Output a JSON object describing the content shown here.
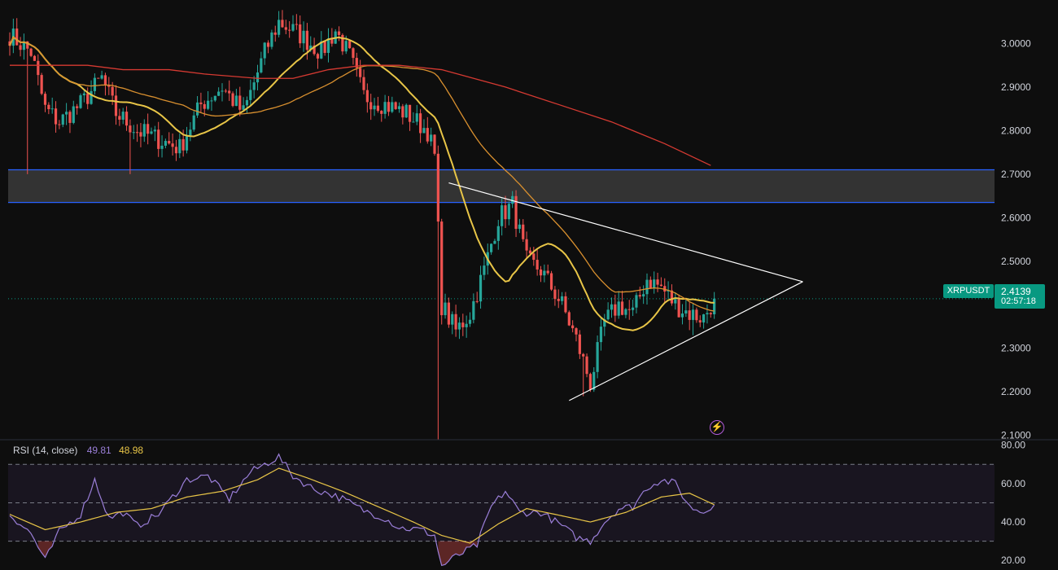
{
  "chart_data": [
    {
      "type": "candlestick",
      "symbol": "XRPUSDT",
      "last_price": "2.4139",
      "countdown": "02:57:18",
      "ylim": [
        2.09,
        3.1
      ],
      "y_ticks": [
        "3.0000",
        "2.9000",
        "2.8000",
        "2.7000",
        "2.6000",
        "2.5000",
        "2.4000",
        "2.3000",
        "2.2000",
        "2.1000"
      ],
      "y_tick_values": [
        3.0,
        2.9,
        2.8,
        2.7,
        2.6,
        2.5,
        2.4,
        2.3,
        2.2,
        2.1
      ],
      "candle_count": 200,
      "close_anchors": [
        [
          0,
          3.02
        ],
        [
          6,
          2.98
        ],
        [
          10,
          2.85
        ],
        [
          14,
          2.82
        ],
        [
          20,
          2.86
        ],
        [
          26,
          2.92
        ],
        [
          30,
          2.84
        ],
        [
          36,
          2.8
        ],
        [
          42,
          2.78
        ],
        [
          48,
          2.76
        ],
        [
          54,
          2.86
        ],
        [
          60,
          2.9
        ],
        [
          66,
          2.84
        ],
        [
          72,
          2.98
        ],
        [
          76,
          3.05
        ],
        [
          82,
          3.02
        ],
        [
          88,
          2.98
        ],
        [
          92,
          3.03
        ],
        [
          96,
          2.97
        ],
        [
          100,
          2.88
        ],
        [
          106,
          2.86
        ],
        [
          112,
          2.84
        ],
        [
          118,
          2.8
        ],
        [
          120,
          2.74
        ],
        [
          122,
          2.4
        ],
        [
          126,
          2.34
        ],
        [
          130,
          2.38
        ],
        [
          134,
          2.48
        ],
        [
          138,
          2.6
        ],
        [
          142,
          2.63
        ],
        [
          146,
          2.5
        ],
        [
          150,
          2.48
        ],
        [
          156,
          2.4
        ],
        [
          160,
          2.32
        ],
        [
          164,
          2.22
        ],
        [
          168,
          2.36
        ],
        [
          172,
          2.4
        ],
        [
          176,
          2.38
        ],
        [
          180,
          2.46
        ],
        [
          184,
          2.44
        ],
        [
          188,
          2.4
        ],
        [
          192,
          2.38
        ],
        [
          196,
          2.37
        ],
        [
          199,
          2.414
        ]
      ],
      "extremes": [
        [
          121,
          2.09
        ],
        [
          5,
          2.7
        ],
        [
          34,
          2.7
        ],
        [
          162,
          2.19
        ],
        [
          193,
          2.33
        ]
      ],
      "moving_averages": [
        {
          "color": "#e8c547",
          "period": 20
        },
        {
          "color": "#d9902f",
          "period": 50
        },
        {
          "color": "#d63a32",
          "points": [
            [
              0,
              2.95
            ],
            [
              10,
              2.95
            ],
            [
              22,
              2.95
            ],
            [
              32,
              2.94
            ],
            [
              45,
              2.94
            ],
            [
              55,
              2.93
            ],
            [
              70,
              2.92
            ],
            [
              80,
              2.92
            ],
            [
              90,
              2.94
            ],
            [
              100,
              2.95
            ],
            [
              110,
              2.95
            ],
            [
              122,
              2.94
            ],
            [
              140,
              2.9
            ],
            [
              155,
              2.86
            ],
            [
              170,
              2.82
            ],
            [
              185,
              2.77
            ],
            [
              198,
              2.72
            ]
          ]
        }
      ],
      "resistance_zone": {
        "low": 2.635,
        "high": 2.71,
        "color": "#2962ff"
      },
      "triangle": {
        "upper": [
          [
            124,
            2.68
          ],
          [
            224,
            2.453
          ]
        ],
        "lower": [
          [
            158,
            2.18
          ],
          [
            224,
            2.453
          ]
        ],
        "color": "#ffffff"
      },
      "current_price_line": 2.4139,
      "grid": false
    },
    {
      "type": "line",
      "indicator": "RSI",
      "legend_label": "RSI (14, close)",
      "rsi_value": "49.81",
      "ma_value": "48.98",
      "ylim": [
        15,
        82
      ],
      "y_ticks": [
        "80.00",
        "60.00",
        "40.00",
        "20.00"
      ],
      "y_tick_values": [
        80,
        60,
        40,
        20
      ],
      "bands": {
        "upper": 70,
        "middle": 50,
        "lower": 30
      },
      "series": [
        {
          "color": "#9b7fd9",
          "points": [
            [
              0,
              44
            ],
            [
              6,
              34
            ],
            [
              10,
              20
            ],
            [
              14,
              35
            ],
            [
              20,
              44
            ],
            [
              24,
              62
            ],
            [
              28,
              42
            ],
            [
              32,
              45
            ],
            [
              36,
              38
            ],
            [
              42,
              44
            ],
            [
              50,
              62
            ],
            [
              56,
              64
            ],
            [
              62,
              52
            ],
            [
              68,
              66
            ],
            [
              72,
              70
            ],
            [
              76,
              74
            ],
            [
              80,
              64
            ],
            [
              86,
              57
            ],
            [
              90,
              55
            ],
            [
              94,
              52
            ],
            [
              100,
              46
            ],
            [
              106,
              42
            ],
            [
              110,
              37
            ],
            [
              116,
              36
            ],
            [
              120,
              33
            ],
            [
              122,
              17
            ],
            [
              126,
              22
            ],
            [
              132,
              28
            ],
            [
              136,
              48
            ],
            [
              140,
              56
            ],
            [
              144,
              45
            ],
            [
              150,
              45
            ],
            [
              156,
              38
            ],
            [
              160,
              32
            ],
            [
              164,
              30
            ],
            [
              168,
              40
            ],
            [
              172,
              47
            ],
            [
              176,
              48
            ],
            [
              180,
              58
            ],
            [
              184,
              62
            ],
            [
              188,
              60
            ],
            [
              192,
              48
            ],
            [
              196,
              45
            ],
            [
              199,
              50
            ]
          ]
        },
        {
          "color": "#e8c547",
          "points": [
            [
              0,
              44
            ],
            [
              10,
              36
            ],
            [
              20,
              40
            ],
            [
              30,
              45
            ],
            [
              40,
              47
            ],
            [
              50,
              53
            ],
            [
              60,
              56
            ],
            [
              70,
              62
            ],
            [
              76,
              68
            ],
            [
              84,
              63
            ],
            [
              94,
              56
            ],
            [
              104,
              48
            ],
            [
              114,
              40
            ],
            [
              122,
              33
            ],
            [
              130,
              29
            ],
            [
              138,
              39
            ],
            [
              146,
              47
            ],
            [
              154,
              44
            ],
            [
              164,
              40
            ],
            [
              174,
              45
            ],
            [
              184,
              53
            ],
            [
              192,
              55
            ],
            [
              199,
              49
            ]
          ]
        }
      ]
    }
  ]
}
